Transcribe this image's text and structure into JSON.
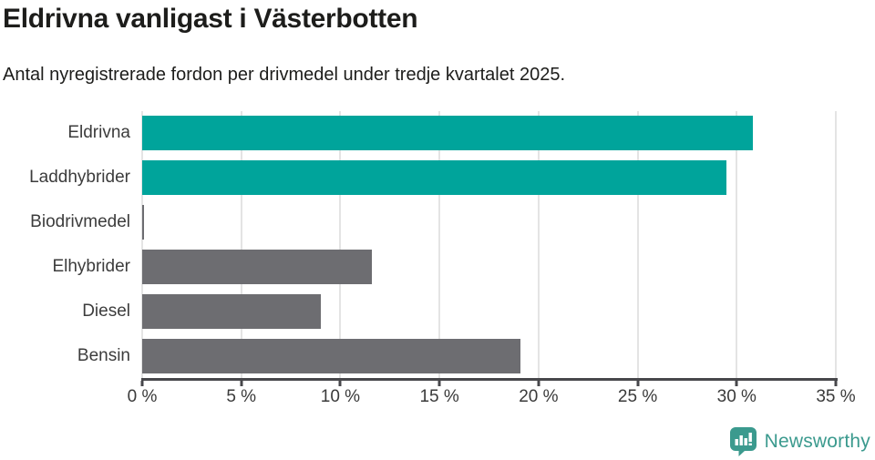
{
  "header": {
    "title": "Eldrivna vanligast i Västerbotten",
    "subtitle": "Antal nyregistrerade fordon per drivmedel under tredje kvartalet 2025."
  },
  "chart_data": {
    "type": "bar",
    "orientation": "horizontal",
    "title": "Eldrivna vanligast i Västerbotten",
    "subtitle": "Antal nyregistrerade fordon per drivmedel under tredje kvartalet 2025.",
    "categories": [
      "Eldrivna",
      "Laddhybrider",
      "Biodrivmedel",
      "Elhybrider",
      "Diesel",
      "Bensin"
    ],
    "values": [
      30.8,
      29.5,
      0.1,
      11.6,
      9.0,
      19.1
    ],
    "unit": "%",
    "bar_colors": [
      "#00a49b",
      "#00a49b",
      "#6d6d71",
      "#6d6d71",
      "#6d6d71",
      "#6d6d71"
    ],
    "xlabel": "",
    "ylabel": "",
    "xlim": [
      0,
      35
    ],
    "x_ticks": [
      0,
      5,
      10,
      15,
      20,
      25,
      30,
      35
    ],
    "x_tick_labels": [
      "0 %",
      "5 %",
      "10 %",
      "15 %",
      "20 %",
      "25 %",
      "30 %",
      "35 %"
    ],
    "grid": "vertical-gridlines-on",
    "legend": "none"
  },
  "colors": {
    "accent_teal": "#00a49b",
    "neutral_gray": "#6d6d71",
    "gridline": "#e4e4e4",
    "axis": "#47474b",
    "text": "#1d1d1b",
    "tick_text": "#3a3a3a",
    "brand": "#3b9a8e"
  },
  "footer": {
    "brand": "Newsworthy"
  }
}
